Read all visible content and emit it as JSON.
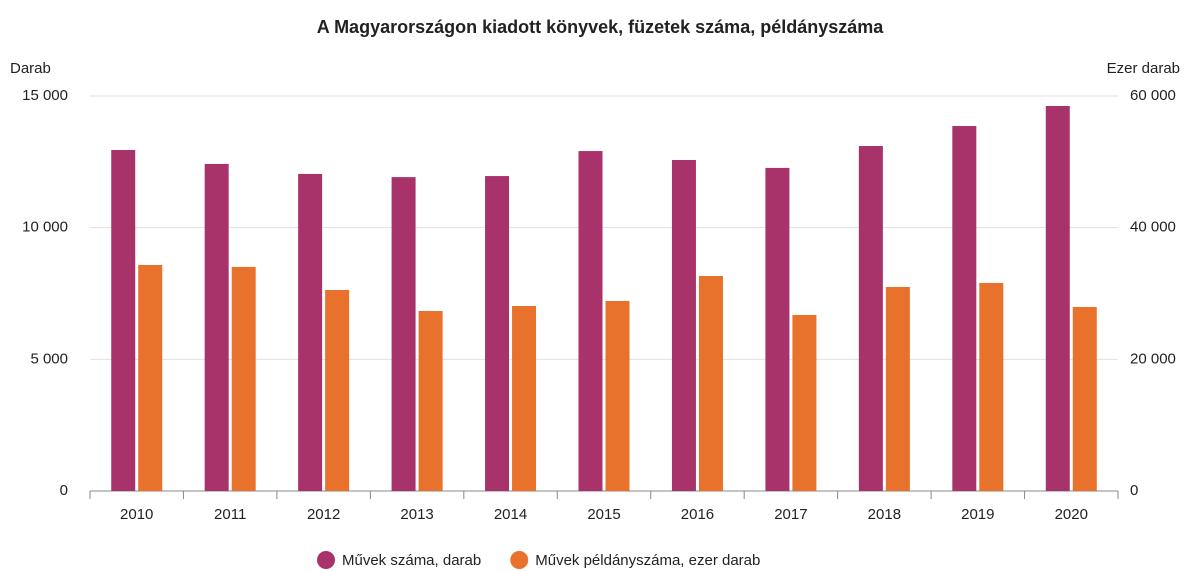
{
  "chart_data": {
    "type": "bar",
    "title": "A Magyarországon kiadott könyvek, füzetek száma, példányszáma",
    "y_label": "Darab",
    "y2_label": "Ezer darab",
    "categories": [
      "2010",
      "2011",
      "2012",
      "2013",
      "2014",
      "2015",
      "2016",
      "2017",
      "2018",
      "2019",
      "2020"
    ],
    "series": [
      {
        "name": "Művek száma, darab",
        "color": "#a8336a",
        "values": [
          12950,
          12420,
          12040,
          11920,
          11960,
          12910,
          12570,
          12270,
          13100,
          13860,
          14620
        ]
      },
      {
        "name": "Művek példányszáma, ezer darab",
        "color": "#e8712b",
        "axis": "y2",
        "values": [
          34330,
          34030,
          30530,
          27340,
          28100,
          28860,
          32660,
          26740,
          30990,
          31600,
          27950
        ]
      }
    ],
    "ylim": [
      0,
      15000
    ],
    "yticks": [
      0,
      {
        "value": 5000,
        "label": "5 000"
      },
      {
        "value": 10000,
        "label": "10 000"
      },
      {
        "value": 15000,
        "label": "15 000"
      }
    ],
    "y2lim": [
      0,
      60000
    ],
    "y2ticks": [
      0,
      {
        "value": 20000,
        "label": "20 000"
      },
      {
        "value": 40000,
        "label": "40 000"
      },
      {
        "value": 60000,
        "label": "60 000"
      }
    ],
    "grid": true,
    "legend": "bottom"
  }
}
